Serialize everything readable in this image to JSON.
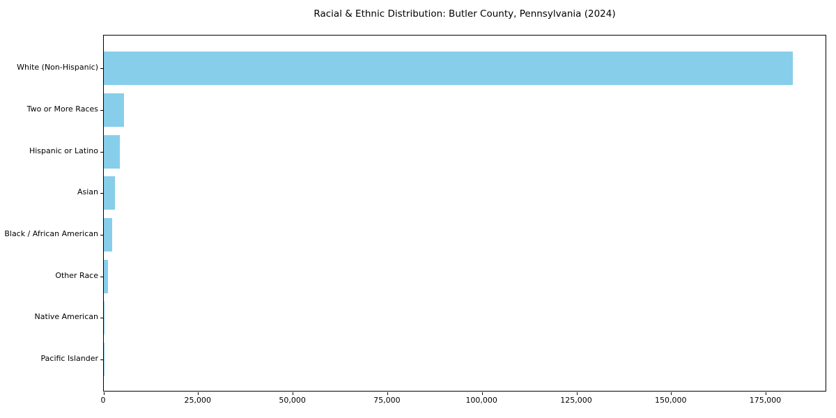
{
  "chart_data": {
    "type": "bar",
    "orientation": "horizontal",
    "title": "Racial & Ethnic Distribution: Butler County, Pennsylvania (2024)",
    "categories": [
      "White (Non-Hispanic)",
      "Two or More Races",
      "Hispanic or Latino",
      "Asian",
      "Black / African American",
      "Other Race",
      "Native American",
      "Pacific Islander"
    ],
    "values": [
      182000,
      5300,
      4200,
      2900,
      2300,
      1100,
      250,
      50
    ],
    "xlabel": "",
    "ylabel": "",
    "xlim": [
      0,
      191100
    ],
    "xticks": {
      "values": [
        0,
        25000,
        50000,
        75000,
        100000,
        125000,
        150000,
        175000
      ],
      "labels": [
        "0",
        "25,000",
        "50,000",
        "75,000",
        "100,000",
        "125,000",
        "150,000",
        "175,000"
      ]
    },
    "grid": false,
    "legend": null,
    "bar_color": "#87CEEB",
    "axis_color": "#000000",
    "text_color": "#000000",
    "background_color": "#ffffff"
  }
}
